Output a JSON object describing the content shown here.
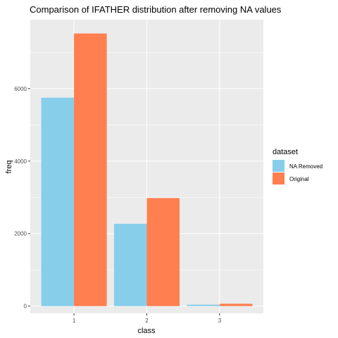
{
  "chart_data": {
    "type": "bar",
    "title": "Comparison of IFATHER distribution after removing NA values",
    "xlabel": "class",
    "ylabel": "freq",
    "categories": [
      "1",
      "2",
      "3"
    ],
    "series": [
      {
        "name": "NA Removed",
        "color": "#87CEEB",
        "values": [
          5750,
          2270,
          40
        ]
      },
      {
        "name": "Original",
        "color": "#FF7F50",
        "values": [
          7520,
          2980,
          65
        ]
      }
    ],
    "ylim": [
      -200,
      7900
    ],
    "yticks": [
      0,
      2000,
      4000,
      6000
    ],
    "yticklabels": [
      "0",
      "2000",
      "4000",
      "6000"
    ],
    "legend": {
      "title": "dataset",
      "position": "right"
    },
    "grid": true,
    "panel_background": "#EBEBEB"
  }
}
